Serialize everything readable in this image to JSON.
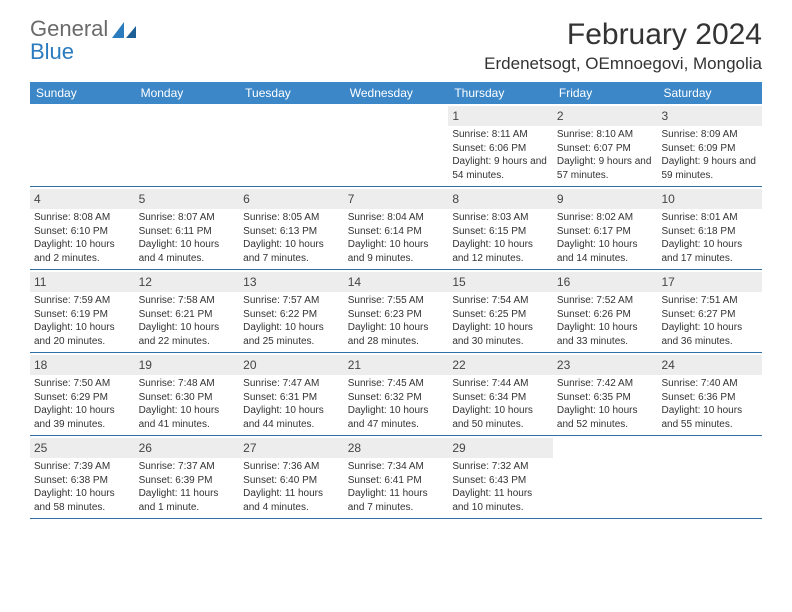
{
  "logo": {
    "line1": "General",
    "line2": "Blue"
  },
  "title": "February 2024",
  "location": "Erdenetsogt, OEmnoegovi, Mongolia",
  "colors": {
    "header_bg": "#3b87c8",
    "row_divider": "#2f6fa6",
    "daynum_bg": "#ededed",
    "logo_gray": "#6b6b6b",
    "logo_blue": "#2b7bbf"
  },
  "day_headers": [
    "Sunday",
    "Monday",
    "Tuesday",
    "Wednesday",
    "Thursday",
    "Friday",
    "Saturday"
  ],
  "weeks": [
    [
      {
        "empty": true
      },
      {
        "empty": true
      },
      {
        "empty": true
      },
      {
        "empty": true
      },
      {
        "num": "1",
        "sunrise": "8:11 AM",
        "sunset": "6:06 PM",
        "daylight": "9 hours and 54 minutes."
      },
      {
        "num": "2",
        "sunrise": "8:10 AM",
        "sunset": "6:07 PM",
        "daylight": "9 hours and 57 minutes."
      },
      {
        "num": "3",
        "sunrise": "8:09 AM",
        "sunset": "6:09 PM",
        "daylight": "9 hours and 59 minutes."
      }
    ],
    [
      {
        "num": "4",
        "sunrise": "8:08 AM",
        "sunset": "6:10 PM",
        "daylight": "10 hours and 2 minutes."
      },
      {
        "num": "5",
        "sunrise": "8:07 AM",
        "sunset": "6:11 PM",
        "daylight": "10 hours and 4 minutes."
      },
      {
        "num": "6",
        "sunrise": "8:05 AM",
        "sunset": "6:13 PM",
        "daylight": "10 hours and 7 minutes."
      },
      {
        "num": "7",
        "sunrise": "8:04 AM",
        "sunset": "6:14 PM",
        "daylight": "10 hours and 9 minutes."
      },
      {
        "num": "8",
        "sunrise": "8:03 AM",
        "sunset": "6:15 PM",
        "daylight": "10 hours and 12 minutes."
      },
      {
        "num": "9",
        "sunrise": "8:02 AM",
        "sunset": "6:17 PM",
        "daylight": "10 hours and 14 minutes."
      },
      {
        "num": "10",
        "sunrise": "8:01 AM",
        "sunset": "6:18 PM",
        "daylight": "10 hours and 17 minutes."
      }
    ],
    [
      {
        "num": "11",
        "sunrise": "7:59 AM",
        "sunset": "6:19 PM",
        "daylight": "10 hours and 20 minutes."
      },
      {
        "num": "12",
        "sunrise": "7:58 AM",
        "sunset": "6:21 PM",
        "daylight": "10 hours and 22 minutes."
      },
      {
        "num": "13",
        "sunrise": "7:57 AM",
        "sunset": "6:22 PM",
        "daylight": "10 hours and 25 minutes."
      },
      {
        "num": "14",
        "sunrise": "7:55 AM",
        "sunset": "6:23 PM",
        "daylight": "10 hours and 28 minutes."
      },
      {
        "num": "15",
        "sunrise": "7:54 AM",
        "sunset": "6:25 PM",
        "daylight": "10 hours and 30 minutes."
      },
      {
        "num": "16",
        "sunrise": "7:52 AM",
        "sunset": "6:26 PM",
        "daylight": "10 hours and 33 minutes."
      },
      {
        "num": "17",
        "sunrise": "7:51 AM",
        "sunset": "6:27 PM",
        "daylight": "10 hours and 36 minutes."
      }
    ],
    [
      {
        "num": "18",
        "sunrise": "7:50 AM",
        "sunset": "6:29 PM",
        "daylight": "10 hours and 39 minutes."
      },
      {
        "num": "19",
        "sunrise": "7:48 AM",
        "sunset": "6:30 PM",
        "daylight": "10 hours and 41 minutes."
      },
      {
        "num": "20",
        "sunrise": "7:47 AM",
        "sunset": "6:31 PM",
        "daylight": "10 hours and 44 minutes."
      },
      {
        "num": "21",
        "sunrise": "7:45 AM",
        "sunset": "6:32 PM",
        "daylight": "10 hours and 47 minutes."
      },
      {
        "num": "22",
        "sunrise": "7:44 AM",
        "sunset": "6:34 PM",
        "daylight": "10 hours and 50 minutes."
      },
      {
        "num": "23",
        "sunrise": "7:42 AM",
        "sunset": "6:35 PM",
        "daylight": "10 hours and 52 minutes."
      },
      {
        "num": "24",
        "sunrise": "7:40 AM",
        "sunset": "6:36 PM",
        "daylight": "10 hours and 55 minutes."
      }
    ],
    [
      {
        "num": "25",
        "sunrise": "7:39 AM",
        "sunset": "6:38 PM",
        "daylight": "10 hours and 58 minutes."
      },
      {
        "num": "26",
        "sunrise": "7:37 AM",
        "sunset": "6:39 PM",
        "daylight": "11 hours and 1 minute."
      },
      {
        "num": "27",
        "sunrise": "7:36 AM",
        "sunset": "6:40 PM",
        "daylight": "11 hours and 4 minutes."
      },
      {
        "num": "28",
        "sunrise": "7:34 AM",
        "sunset": "6:41 PM",
        "daylight": "11 hours and 7 minutes."
      },
      {
        "num": "29",
        "sunrise": "7:32 AM",
        "sunset": "6:43 PM",
        "daylight": "11 hours and 10 minutes."
      },
      {
        "empty": true
      },
      {
        "empty": true
      }
    ]
  ],
  "labels": {
    "sunrise": "Sunrise: ",
    "sunset": "Sunset: ",
    "daylight": "Daylight: "
  }
}
